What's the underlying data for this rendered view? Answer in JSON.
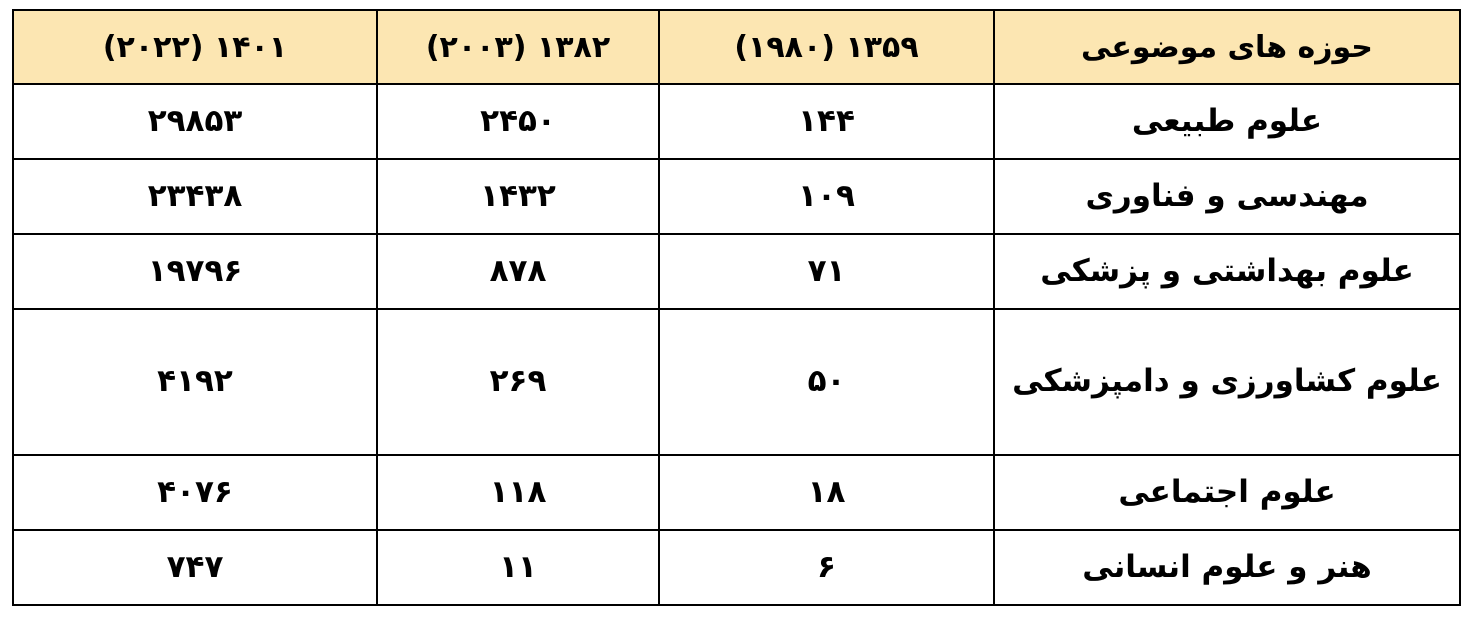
{
  "table": {
    "headers": [
      "حوزه های موضوعی",
      "۱۳۵۹ (۱۹۸۰)",
      "۱۳۸۲ (۲۰۰۳)",
      "۱۴۰۱ (۲۰۲۲)"
    ],
    "rows": [
      [
        "علوم طبیعی",
        "۱۴۴",
        "۲۴۵۰",
        "۲۹۸۵۳"
      ],
      [
        "مهندسی و فناوری",
        "۱۰۹",
        "۱۴۳۲",
        "۲۳۴۳۸"
      ],
      [
        "علوم بهداشتی و پزشکی",
        "۷۱",
        "۸۷۸",
        "۱۹۷۹۶"
      ],
      [
        "علوم کشاورزی و دامپزشکی",
        "۵۰",
        "۲۶۹",
        "۴۱۹۲"
      ],
      [
        "علوم اجتماعی",
        "۱۸",
        "۱۱۸",
        "۴۰۷۶"
      ],
      [
        "هنر و علوم انسانی",
        "۶",
        "۱۱",
        "۷۴۷"
      ]
    ]
  }
}
